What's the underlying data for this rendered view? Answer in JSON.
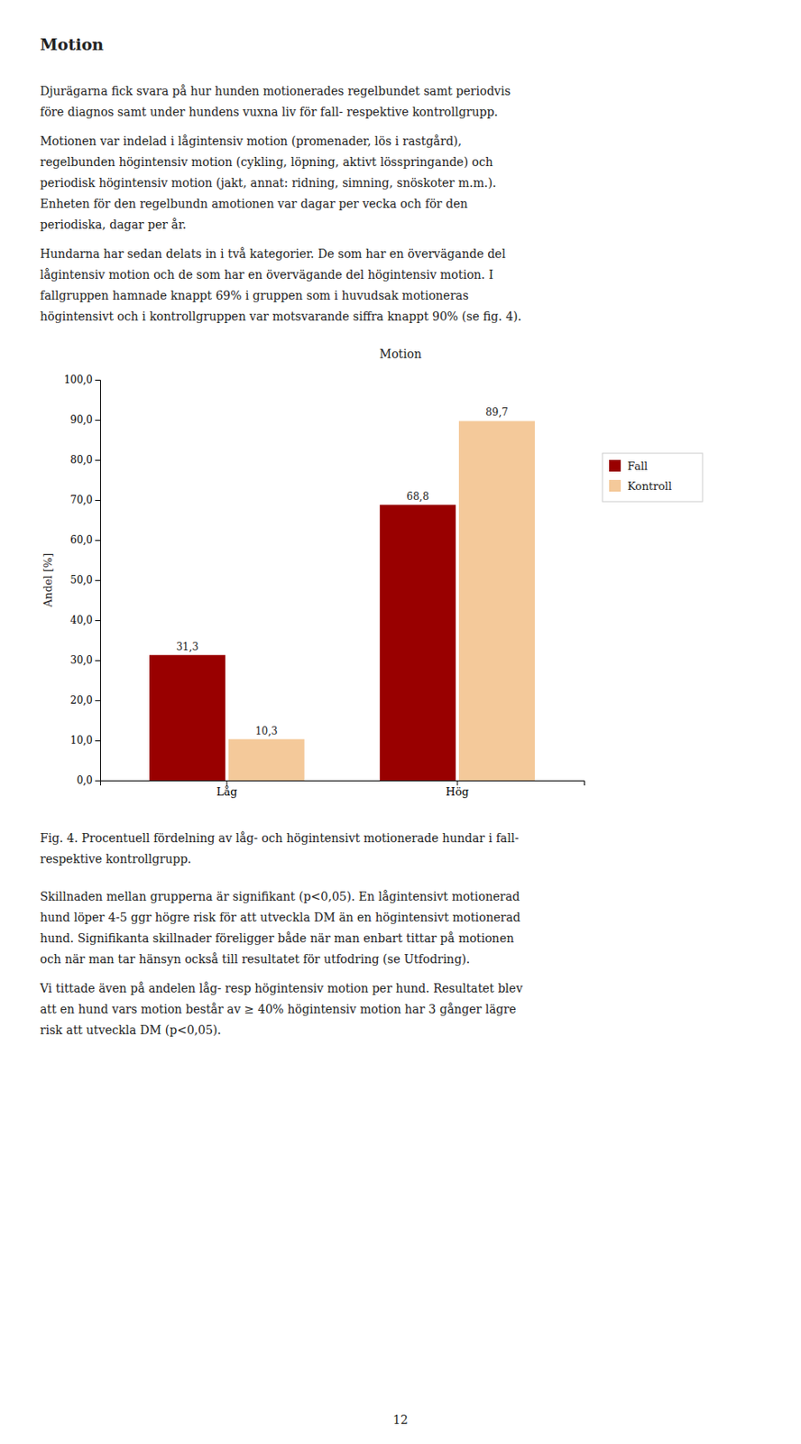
{
  "heading": "Motion",
  "text_before": [
    [
      "Djurägarna fick svara på hur hunden motionerades regelbundet samt periodvis",
      "före diagnos samt under hundens vuxna liv för fall- respektive kontrollgrupp."
    ],
    [
      "Motionen var indelad i lågintensiv motion (promenader, lös i rastgård),",
      "regelbunden högintensiv motion (cykling, löpning, aktivt lösspringande) och",
      "periodisk högintensiv motion (jakt, annat: ridning, simning, snöskoter m.m.).",
      "Enheten för den regelbundn amotionen var dagar per vecka och för den",
      "periodiska, dagar per år."
    ],
    [
      "Hundarna har sedan delats in i två kategorier. De som har en övervägande del",
      "lågintensiv motion och de som har en övervägande del högintensiv motion. I",
      "fallgruppen hamnade knappt 69% i gruppen som i huvudsak motioneras",
      "högintensivt och i kontrollgruppen var motsvarande siffra knappt 90% (se fig. 4)."
    ]
  ],
  "chart_data": {
    "type": "bar",
    "title": "Motion",
    "ylabel": "Andel [%]",
    "categories": [
      "Låg",
      "Hög"
    ],
    "series": [
      {
        "name": "Fall",
        "color": "#990000",
        "values": [
          31.3,
          68.8
        ],
        "value_labels": [
          "31,3",
          "68,8"
        ]
      },
      {
        "name": "Kontroll",
        "color": "#F4C99A",
        "values": [
          10.3,
          89.7
        ],
        "value_labels": [
          "10,3",
          "89,7"
        ]
      }
    ],
    "ylim": [
      0,
      100
    ],
    "yticks": [
      {
        "value": 0.0,
        "label": "0,0"
      },
      {
        "value": 10.0,
        "label": "10,0"
      },
      {
        "value": 20.0,
        "label": "20,0"
      },
      {
        "value": 30.0,
        "label": "30,0"
      },
      {
        "value": 40.0,
        "label": "40,0"
      },
      {
        "value": 50.0,
        "label": "50,0"
      },
      {
        "value": 60.0,
        "label": "60,0"
      },
      {
        "value": 70.0,
        "label": "70,0"
      },
      {
        "value": 80.0,
        "label": "80,0"
      },
      {
        "value": 90.0,
        "label": "90,0"
      },
      {
        "value": 100.0,
        "label": "100,0"
      }
    ],
    "grid": false,
    "legend": "right",
    "data_labels": true
  },
  "caption": [
    "Fig. 4. Procentuell fördelning av låg- och högintensivt motionerade hundar i fall-",
    "respektive kontrollgrupp."
  ],
  "text_after": [
    [
      "Skillnaden mellan grupperna är signifikant (p<0,05). En lågintensivt motionerad",
      "hund löper 4-5 ggr högre risk för att utveckla DM än en högintensivt motionerad",
      "hund. Signifikanta skillnader föreligger både  när man enbart tittar på motionen",
      "och när man tar hänsyn också till resultatet för utfodring (se Utfodring)."
    ],
    [
      "Vi tittade även på andelen låg- resp högintensiv motion per hund. Resultatet blev",
      "att en hund vars motion  består av ≥ 40% högintensiv motion  har 3 gånger lägre",
      "risk att utveckla DM (p<0,05)."
    ]
  ],
  "page_number": "12"
}
